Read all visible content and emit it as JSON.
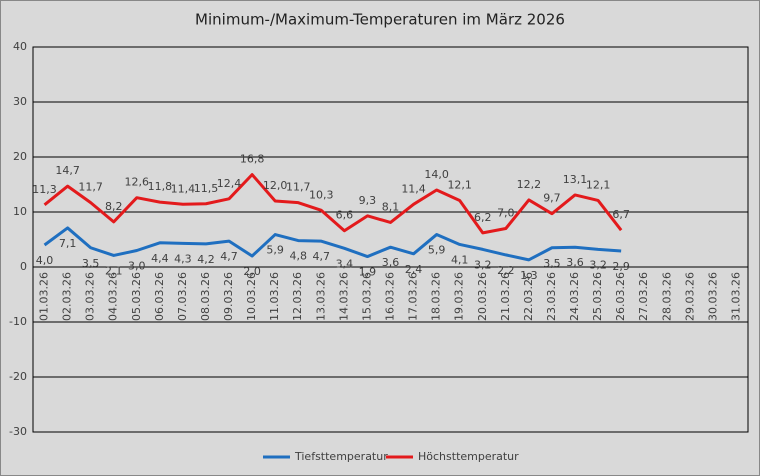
{
  "chart_data": {
    "type": "line",
    "title": "Minimum-/Maximum-Temperaturen im März 2026",
    "categories": [
      "01.03.26",
      "02.03.26",
      "03.03.26",
      "04.03.26",
      "05.03.26",
      "06.03.26",
      "07.03.26",
      "08.03.26",
      "09.03.26",
      "10.03.26",
      "11.03.26",
      "12.03.26",
      "13.03.26",
      "14.03.26",
      "15.03.26",
      "16.03.26",
      "17.03.26",
      "18.03.26",
      "19.03.26",
      "20.03.26",
      "21.03.26",
      "22.03.26",
      "23.03.26",
      "24.03.26",
      "25.03.26",
      "26.03.26",
      "27.03.26",
      "28.03.26",
      "29.03.26",
      "30.03.26",
      "31.03.26"
    ],
    "series": [
      {
        "name": "Tiefsttemperatur",
        "color": "#1f6fc0",
        "label_side": "below",
        "values": [
          4.0,
          7.1,
          3.5,
          2.1,
          3.0,
          4.4,
          4.3,
          4.2,
          4.7,
          2.0,
          5.9,
          4.8,
          4.7,
          3.4,
          1.9,
          3.6,
          2.4,
          5.9,
          4.1,
          3.2,
          2.2,
          1.3,
          3.5,
          3.6,
          3.2,
          2.9,
          null,
          null,
          null,
          null,
          null
        ],
        "value_labels": [
          "4,0",
          "7,1",
          "3,5",
          "2,1",
          "3,0",
          "4,4",
          "4,3",
          "4,2",
          "4,7",
          "2,0",
          "5,9",
          "4,8",
          "4,7",
          "3,4",
          "1,9",
          "3,6",
          "2,4",
          "5,9",
          "4,1",
          "3,2",
          "2,2",
          "1,3",
          "3,5",
          "3,6",
          "3,2",
          "2,9",
          null,
          null,
          null,
          null,
          null
        ]
      },
      {
        "name": "Höchsttemperatur",
        "color": "#e31a1c",
        "label_side": "above",
        "values": [
          11.3,
          14.7,
          11.7,
          8.2,
          12.6,
          11.8,
          11.4,
          11.5,
          12.4,
          16.8,
          12.0,
          11.7,
          10.3,
          6.6,
          9.3,
          8.1,
          11.4,
          14.0,
          12.1,
          6.2,
          7.0,
          12.2,
          9.7,
          13.1,
          12.1,
          6.7,
          null,
          null,
          null,
          null,
          null
        ],
        "value_labels": [
          "11,3",
          "14,7",
          "11,7",
          "8,2",
          "12,6",
          "11,8",
          "11,4",
          "11,5",
          "12,4",
          "16,8",
          "12,0",
          "11,7",
          "10,3",
          "6,6",
          "9,3",
          "8,1",
          "11,4",
          "14,0",
          "12,1",
          "6,2",
          "7,0",
          "12,2",
          "9,7",
          "13,1",
          "12,1",
          "6,7",
          null,
          null,
          null,
          null,
          null
        ]
      }
    ],
    "ylim": [
      -30,
      40
    ],
    "yticks": [
      -30,
      -20,
      -10,
      0,
      10,
      20,
      30,
      40
    ],
    "grid": true,
    "legend": "bottom"
  }
}
